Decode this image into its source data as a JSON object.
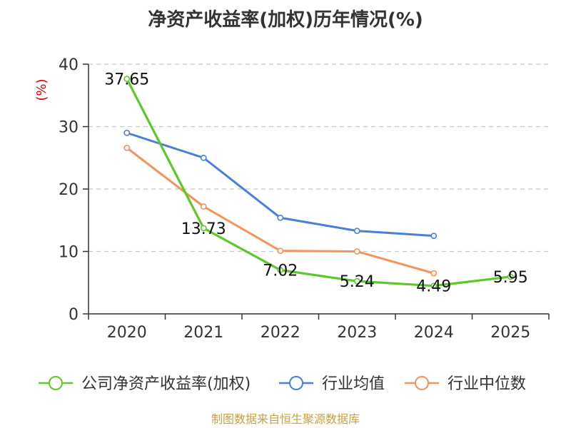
{
  "chart_data": {
    "type": "line",
    "title": "净资产收益率(加权)历年情况(%)",
    "ylabel": "(%)",
    "xlabel": "",
    "categories": [
      "2020",
      "2021",
      "2022",
      "2023",
      "2024",
      "2025"
    ],
    "ylim": [
      0,
      40
    ],
    "yticks": [
      0,
      10,
      20,
      30,
      40
    ],
    "grid": true,
    "legend_position": "bottom",
    "series": [
      {
        "name": "公司净资产收益率(加权)",
        "color": "#5cc82a",
        "values": [
          37.65,
          13.73,
          7.02,
          5.24,
          4.49,
          5.95
        ],
        "labels": [
          "37.65",
          "13.73",
          "7.02",
          "5.24",
          "4.49",
          "5.95"
        ]
      },
      {
        "name": "行业均值",
        "color": "#4a7fd9",
        "values": [
          29.0,
          25.0,
          15.4,
          13.3,
          12.5,
          null
        ]
      },
      {
        "name": "行业中位数",
        "color": "#f6925a",
        "values": [
          26.6,
          17.2,
          10.1,
          10.0,
          6.5,
          null
        ]
      }
    ]
  },
  "source_text": "制图数据来自恒生聚源数据库"
}
